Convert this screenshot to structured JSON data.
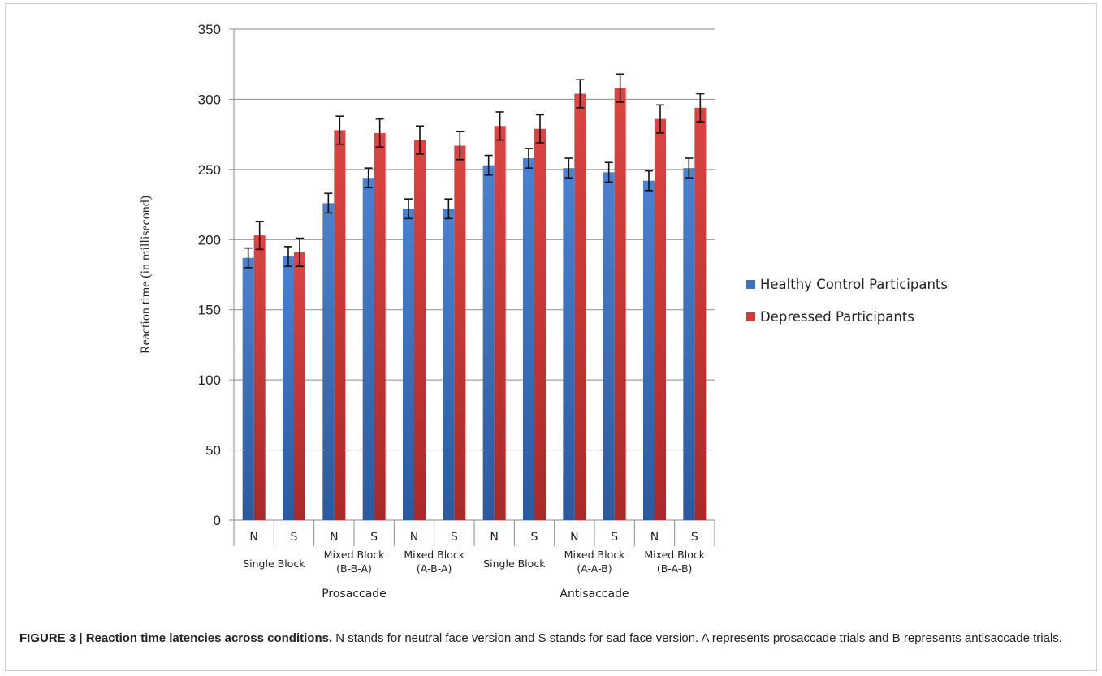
{
  "chart_data": {
    "type": "bar",
    "ylabel": "Reaction time (in millisecond)",
    "ylim": [
      0,
      350
    ],
    "yticks": [
      0,
      50,
      100,
      150,
      200,
      250,
      300,
      350
    ],
    "grid": true,
    "legend_position": "right",
    "categories": [
      "N",
      "S",
      "N",
      "S",
      "N",
      "S",
      "N",
      "S",
      "N",
      "S",
      "N",
      "S"
    ],
    "groups": [
      {
        "label": [
          "Single Block"
        ],
        "span": [
          0,
          1
        ]
      },
      {
        "label": [
          "Mixed Block",
          "(B-B-A)"
        ],
        "span": [
          2,
          3
        ]
      },
      {
        "label": [
          "Mixed Block",
          "(A-B-A)"
        ],
        "span": [
          4,
          5
        ]
      },
      {
        "label": [
          "Single Block"
        ],
        "span": [
          6,
          7
        ]
      },
      {
        "label": [
          "Mixed Block",
          "(A-A-B)"
        ],
        "span": [
          8,
          9
        ]
      },
      {
        "label": [
          "Mixed Block",
          "(B-A-B)"
        ],
        "span": [
          10,
          11
        ]
      }
    ],
    "supergroups": [
      {
        "label": "Prosaccade",
        "span": [
          0,
          5
        ]
      },
      {
        "label": "Antisaccade",
        "span": [
          6,
          11
        ]
      }
    ],
    "series": [
      {
        "name": "Healthy Control Participants",
        "color": "#3B73C4",
        "values": [
          187,
          188,
          226,
          244,
          222,
          222,
          253,
          258,
          251,
          248,
          242,
          251
        ],
        "errors": [
          7,
          7,
          7,
          7,
          7,
          7,
          7,
          7,
          7,
          7,
          7,
          7
        ]
      },
      {
        "name": "Depressed Participants",
        "color": "#D23A37",
        "values": [
          203,
          191,
          278,
          276,
          271,
          267,
          281,
          279,
          304,
          308,
          286,
          294
        ],
        "errors": [
          10,
          10,
          10,
          10,
          10,
          10,
          10,
          10,
          10,
          10,
          10,
          10
        ]
      }
    ]
  },
  "caption": {
    "label": "FIGURE 3 | Reaction time latencies across conditions.",
    "text": " N stands for neutral face version and S stands for sad face version. A represents prosaccade trials and B represents antisaccade trials."
  }
}
